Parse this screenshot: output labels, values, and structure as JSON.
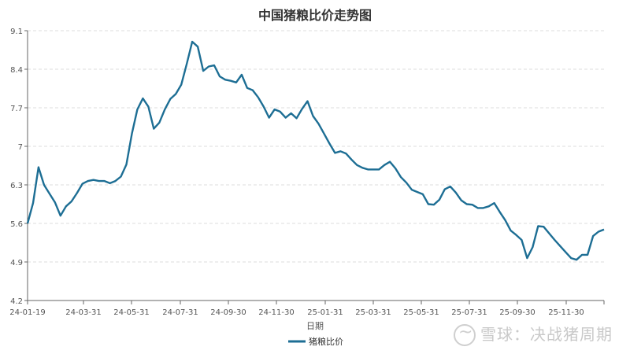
{
  "chart_data": {
    "type": "line",
    "title": "中国猪粮比价走势图",
    "xlabel": "日期",
    "ylabel": "",
    "ylim": [
      4.2,
      9.1
    ],
    "yticks": [
      "9.1",
      "8.4",
      "7.7",
      "7",
      "6.3",
      "5.6",
      "4.9",
      "4.2"
    ],
    "xticks": [
      "24-01-19",
      "24-03-31",
      "24-05-31",
      "24-07-31",
      "24-09-30",
      "24-11-30",
      "25-01-31",
      "25-03-31",
      "25-05-31",
      "25-07-31",
      "25-09-30",
      "25-11-30"
    ],
    "grid": "horizontal-dashed",
    "legend": "bottom-center",
    "color": "#1d6e94",
    "series": [
      {
        "name": "猪粮比价",
        "values": [
          5.6,
          5.97,
          6.62,
          6.3,
          6.14,
          5.98,
          5.74,
          5.91,
          6.0,
          6.15,
          6.32,
          6.37,
          6.39,
          6.37,
          6.37,
          6.33,
          6.37,
          6.45,
          6.67,
          7.23,
          7.67,
          7.87,
          7.72,
          7.32,
          7.43,
          7.67,
          7.86,
          7.95,
          8.12,
          8.5,
          8.9,
          8.81,
          8.37,
          8.45,
          8.47,
          8.27,
          8.21,
          8.19,
          8.16,
          8.3,
          8.06,
          8.02,
          7.89,
          7.72,
          7.52,
          7.67,
          7.63,
          7.52,
          7.6,
          7.51,
          7.68,
          7.82,
          7.55,
          7.41,
          7.23,
          7.05,
          6.88,
          6.91,
          6.87,
          6.76,
          6.66,
          6.61,
          6.58,
          6.58,
          6.58,
          6.66,
          6.72,
          6.6,
          6.44,
          6.34,
          6.21,
          6.17,
          6.13,
          5.95,
          5.94,
          6.03,
          6.22,
          6.27,
          6.16,
          6.02,
          5.95,
          5.94,
          5.88,
          5.88,
          5.91,
          5.97,
          5.81,
          5.66,
          5.47,
          5.39,
          5.3,
          4.97,
          5.17,
          5.55,
          5.54,
          5.42,
          5.3,
          5.19,
          5.08,
          4.97,
          4.94,
          5.03,
          5.03,
          5.37,
          5.45,
          5.49
        ]
      }
    ]
  },
  "watermark": "雪球：决战猪周期"
}
